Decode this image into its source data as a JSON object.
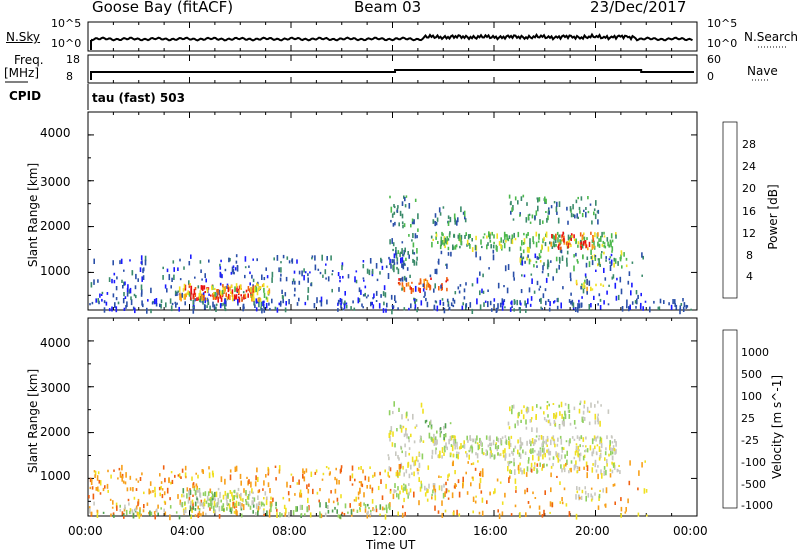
{
  "header": {
    "station": "Goose Bay (fitACF)",
    "beam": "Beam 03",
    "date": "23/Dec/2017"
  },
  "top_panels": {
    "nsky_label": "N.Sky",
    "nsky_ticks_left": [
      "10^5",
      "10^0"
    ],
    "nsky_ticks_right": [
      "10^5",
      "10^0"
    ],
    "nsearch_label": "N.Search",
    "freq_label": "Freq.",
    "freq_unit": "[MHz]",
    "freq_ticks": [
      "18",
      "8"
    ],
    "nave_label": "Nave",
    "nave_ticks": [
      "60",
      "0"
    ],
    "cpid_label": "CPID",
    "cpid_value": "tau (fast) 503"
  },
  "colors": {
    "power": [
      "#1a1aff",
      "#2a4fa8",
      "#3a8a6a",
      "#4cb84c",
      "#f0e020",
      "#f7a01a",
      "#f06010",
      "#e81010"
    ],
    "velocity": [
      "#e81010",
      "#f06010",
      "#f7a01a",
      "#f0e020",
      "#c8c8c0",
      "#90d060",
      "#50a050",
      "#3a7a8a",
      "#2a4fa8",
      "#1a1aff"
    ]
  },
  "chart_data": [
    {
      "type": "heatmap",
      "panel": "power",
      "ylabel": "Slant Range [km]",
      "yticks": [
        "4000",
        "3000",
        "2000",
        "1000"
      ],
      "ylim": [
        180,
        4500
      ],
      "xlim": [
        0,
        24
      ],
      "colorbar_label": "Power [dB]",
      "colorbar_ticks": [
        "28",
        "24",
        "20",
        "16",
        "12",
        "8",
        "4"
      ],
      "colorbar_range": [
        0,
        32
      ],
      "patches": [
        {
          "t0": 0,
          "t1": 24,
          "r0": 200,
          "r1": 450,
          "level": 1,
          "density": 0.35
        },
        {
          "t0": 0,
          "t1": 12,
          "r0": 300,
          "r1": 1400,
          "level": 1,
          "density": 0.18
        },
        {
          "t0": 3.8,
          "t1": 6.6,
          "r0": 450,
          "r1": 750,
          "level": 7,
          "density": 0.8
        },
        {
          "t0": 3.5,
          "t1": 7.2,
          "r0": 420,
          "r1": 800,
          "level": 4,
          "density": 0.5
        },
        {
          "t0": 12.2,
          "t1": 14.2,
          "r0": 650,
          "r1": 900,
          "level": 6,
          "density": 0.7
        },
        {
          "t0": 11.8,
          "t1": 13.0,
          "r0": 1100,
          "r1": 2700,
          "level": 2,
          "density": 0.35
        },
        {
          "t0": 13.5,
          "t1": 20.8,
          "r0": 1550,
          "r1": 1900,
          "level": 3,
          "density": 0.65
        },
        {
          "t0": 18.2,
          "t1": 20.2,
          "r0": 1550,
          "r1": 1900,
          "level": 6,
          "density": 0.55
        },
        {
          "t0": 17.0,
          "t1": 21.2,
          "r0": 1150,
          "r1": 1500,
          "level": 3,
          "density": 0.35
        },
        {
          "t0": 16.5,
          "t1": 20.2,
          "r0": 2100,
          "r1": 2700,
          "level": 2,
          "density": 0.3
        },
        {
          "t0": 13.5,
          "t1": 15.0,
          "r0": 2100,
          "r1": 2450,
          "level": 2,
          "density": 0.4
        },
        {
          "t0": 19.2,
          "t1": 20.3,
          "r0": 600,
          "r1": 850,
          "level": 4,
          "density": 0.5
        },
        {
          "t0": 12,
          "t1": 22,
          "r0": 300,
          "r1": 1500,
          "level": 1,
          "density": 0.12
        }
      ]
    },
    {
      "type": "heatmap",
      "panel": "velocity",
      "ylabel": "Slant Range [km]",
      "yticks": [
        "4000",
        "3000",
        "2000",
        "1000"
      ],
      "ylim": [
        180,
        4500
      ],
      "xlim": [
        0,
        24
      ],
      "xticks": [
        "00:00",
        "04:00",
        "08:00",
        "12:00",
        "16:00",
        "20:00",
        "00:00"
      ],
      "xlabel": "Time UT",
      "colorbar_label": "Velocity [m s^-1]",
      "colorbar_ticks": [
        "1000",
        "500",
        "100",
        "25",
        "-25",
        "-100",
        "-500",
        "-1000"
      ],
      "patches": [
        {
          "t0": 0,
          "t1": 12,
          "r0": 200,
          "r1": 1300,
          "level": 2,
          "density": 0.22
        },
        {
          "t0": 0,
          "t1": 12,
          "r0": 200,
          "r1": 500,
          "level": 5,
          "density": 0.3
        },
        {
          "t0": 3.6,
          "t1": 7.2,
          "r0": 450,
          "r1": 800,
          "level": 4,
          "density": 0.6
        },
        {
          "t0": 3.6,
          "t1": 5.0,
          "r0": 550,
          "r1": 800,
          "level": 5,
          "density": 0.5
        },
        {
          "t0": 12.0,
          "t1": 14.2,
          "r0": 650,
          "r1": 900,
          "level": 4,
          "density": 0.6
        },
        {
          "t0": 11.8,
          "t1": 13.2,
          "r0": 1100,
          "r1": 2700,
          "level": 4,
          "density": 0.3
        },
        {
          "t0": 13.5,
          "t1": 20.8,
          "r0": 1500,
          "r1": 1950,
          "level": 4,
          "density": 0.75
        },
        {
          "t0": 16.5,
          "t1": 21.0,
          "r0": 1150,
          "r1": 1500,
          "level": 4,
          "density": 0.45
        },
        {
          "t0": 16.5,
          "t1": 20.5,
          "r0": 2100,
          "r1": 2700,
          "level": 4,
          "density": 0.35
        },
        {
          "t0": 13.2,
          "t1": 14.5,
          "r0": 1900,
          "r1": 2300,
          "level": 5,
          "density": 0.4
        },
        {
          "t0": 19.2,
          "t1": 20.3,
          "r0": 600,
          "r1": 850,
          "level": 4,
          "density": 0.6
        },
        {
          "t0": 12,
          "t1": 22,
          "r0": 200,
          "r1": 1400,
          "level": 2,
          "density": 0.12
        }
      ]
    }
  ]
}
